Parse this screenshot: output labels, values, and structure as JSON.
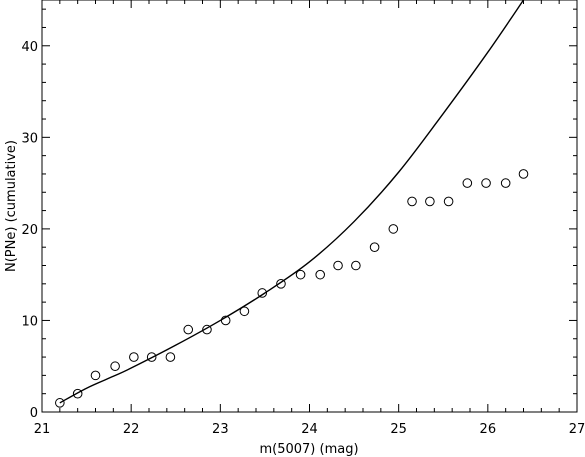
{
  "chart_data": {
    "type": "scatter",
    "xlabel": "m(5007) (mag)",
    "ylabel": "N(PNe) (cumulative)",
    "xlim": [
      21,
      27
    ],
    "ylim": [
      0,
      45
    ],
    "x_ticks": [
      21,
      22,
      23,
      24,
      25,
      26,
      27
    ],
    "y_ticks": [
      0,
      10,
      20,
      30,
      40
    ],
    "grid": false,
    "series": [
      {
        "marker": "open-circle",
        "x": [
          21.2,
          21.4,
          21.6,
          21.82,
          22.03,
          22.23,
          22.44,
          22.64,
          22.85,
          23.06,
          23.27,
          23.47,
          23.68,
          23.9,
          24.12,
          24.32,
          24.52,
          24.73,
          24.94,
          25.15,
          25.35,
          25.56,
          25.77,
          25.98,
          26.2,
          26.4
        ],
        "y": [
          1,
          2,
          4,
          5,
          6,
          6,
          6,
          9,
          9,
          10,
          11,
          13,
          14,
          15,
          15,
          16,
          16,
          18,
          20,
          23,
          23,
          23,
          25,
          25,
          25,
          26
        ]
      },
      {
        "marker": "line",
        "x": [
          21.2,
          21.5,
          21.8,
          22.0,
          22.5,
          23.0,
          23.5,
          24.0,
          24.5,
          25.0,
          25.5,
          26.0,
          26.4
        ],
        "y": [
          1.0,
          2.6,
          3.9,
          4.8,
          7.3,
          10.0,
          13.0,
          16.4,
          20.8,
          26.2,
          32.6,
          39.3,
          45
        ]
      }
    ]
  }
}
